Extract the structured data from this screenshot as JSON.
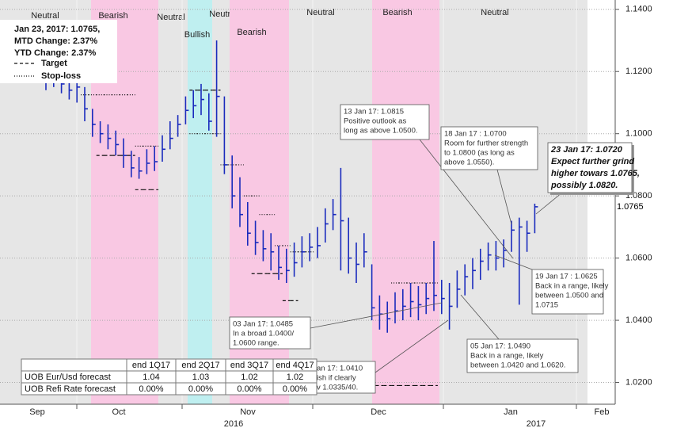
{
  "chart_data": {
    "type": "ohlc",
    "color": "#1a2bbd",
    "ylim": [
      1.013,
      1.143
    ],
    "yticks": [
      {
        "value": 1.02,
        "label": "1.0200"
      },
      {
        "value": 1.04,
        "label": "1.0400"
      },
      {
        "value": 1.06,
        "label": "1.0600"
      },
      {
        "value": 1.08,
        "label": "1.0800"
      },
      {
        "value": 1.1,
        "label": "1.1000"
      },
      {
        "value": 1.12,
        "label": "1.1200"
      },
      {
        "value": 1.14,
        "label": "1.1400"
      }
    ],
    "grid": true,
    "month_labels": [
      "Sep",
      "Oct",
      "Nov",
      "Dec",
      "Jan",
      "Feb"
    ],
    "year_labels": [
      "2016",
      "2017"
    ],
    "categories": [
      null,
      null,
      null,
      null,
      null,
      null,
      null,
      null,
      null,
      null,
      null,
      null,
      null,
      null,
      null,
      null,
      null,
      null,
      null,
      null,
      null,
      null,
      null,
      null,
      null,
      null,
      null,
      null,
      null,
      null,
      null,
      null,
      null,
      null,
      null,
      null,
      null,
      null,
      null,
      null,
      null,
      null,
      null,
      null,
      null,
      null,
      null,
      null,
      null,
      null,
      null,
      null,
      null,
      null,
      null,
      null,
      null,
      null,
      null,
      null,
      null,
      null,
      null,
      null
    ],
    "series": {
      "high": [
        1.1205,
        1.121,
        1.1195,
        1.118,
        1.1185,
        1.115,
        1.108,
        1.104,
        1.103,
        1.101,
        1.0985,
        1.0945,
        1.0925,
        1.095,
        1.096,
        1.0995,
        1.104,
        1.106,
        1.112,
        1.114,
        1.116,
        1.113,
        1.13,
        1.112,
        1.093,
        1.086,
        1.078,
        1.072,
        1.069,
        1.068,
        1.064,
        1.063,
        1.065,
        1.067,
        1.068,
        1.07,
        1.076,
        1.079,
        1.089,
        1.073,
        1.065,
        1.068,
        1.058,
        1.048,
        1.046,
        1.049,
        1.05,
        1.052,
        1.051,
        1.052,
        1.0655,
        1.053,
        1.052,
        1.056,
        1.058,
        1.06,
        1.063,
        1.065,
        1.0655,
        1.066,
        1.072,
        1.073,
        1.072,
        1.0775
      ],
      "low": [
        1.114,
        1.115,
        1.113,
        1.111,
        1.11,
        1.104,
        1.099,
        1.097,
        1.095,
        1.093,
        1.089,
        1.086,
        1.0855,
        1.087,
        1.088,
        1.091,
        1.095,
        1.099,
        1.103,
        1.105,
        1.106,
        1.101,
        1.099,
        1.087,
        1.076,
        1.07,
        1.064,
        1.061,
        1.059,
        1.056,
        1.053,
        1.052,
        1.054,
        1.057,
        1.059,
        1.06,
        1.065,
        1.069,
        1.056,
        1.055,
        1.052,
        1.057,
        1.04,
        1.037,
        1.036,
        1.039,
        1.04,
        1.041,
        1.04,
        1.042,
        1.043,
        1.042,
        1.037,
        1.044,
        1.048,
        1.05,
        1.053,
        1.056,
        1.056,
        1.057,
        1.062,
        1.045,
        1.062,
        1.068
      ],
      "close": [
        1.117,
        1.1185,
        1.116,
        1.114,
        1.115,
        1.108,
        1.103,
        1.1,
        1.0985,
        1.0965,
        1.093,
        1.089,
        1.088,
        1.0905,
        1.091,
        1.095,
        1.0985,
        1.103,
        1.1075,
        1.109,
        1.111,
        1.104,
        1.112,
        1.09,
        1.08,
        1.074,
        1.068,
        1.065,
        1.063,
        1.062,
        1.057,
        1.056,
        1.0585,
        1.062,
        1.0635,
        1.064,
        1.071,
        1.074,
        1.072,
        1.06,
        1.058,
        1.062,
        1.044,
        1.042,
        1.0405,
        1.043,
        1.0445,
        1.046,
        1.045,
        1.047,
        1.048,
        1.047,
        1.0445,
        1.05,
        1.054,
        1.056,
        1.059,
        1.061,
        1.06,
        1.0625,
        1.069,
        1.07,
        1.068,
        1.0765
      ]
    },
    "levels": [
      {
        "name": "Target",
        "style": "dashed",
        "color": "#111111",
        "values": [
          null,
          null,
          null,
          null,
          null,
          null,
          null,
          1.093,
          1.093,
          1.093,
          1.093,
          1.093,
          1.082,
          1.082,
          1.082,
          null,
          null,
          null,
          null,
          1.114,
          1.114,
          1.114,
          1.114,
          null,
          null,
          null,
          null,
          1.055,
          1.055,
          1.055,
          1.055,
          1.0463,
          1.0463,
          null,
          null,
          null,
          null,
          null,
          null,
          null,
          null,
          null,
          null,
          1.019,
          1.019,
          1.019,
          1.019,
          1.019,
          1.019,
          1.019,
          1.019,
          null,
          null,
          null,
          null,
          null,
          null,
          null,
          null,
          null,
          null,
          null,
          null,
          null
        ]
      },
      {
        "name": "Stop-loss",
        "style": "dotted",
        "color": "#111111",
        "values": [
          null,
          null,
          null,
          null,
          null,
          1.1125,
          1.1125,
          1.1125,
          1.1125,
          1.1125,
          1.1125,
          1.1125,
          1.096,
          1.096,
          1.096,
          null,
          null,
          null,
          null,
          1.1,
          1.1,
          1.1,
          1.1,
          1.09,
          1.09,
          1.09,
          1.08,
          1.08,
          1.074,
          1.074,
          1.064,
          1.064,
          1.062,
          1.062,
          1.062,
          null,
          null,
          null,
          null,
          null,
          null,
          null,
          null,
          null,
          null,
          1.052,
          1.052,
          1.052,
          1.052,
          1.052,
          1.052,
          null,
          null,
          null,
          null,
          null,
          null,
          null,
          null,
          null,
          null,
          null,
          null,
          null
        ]
      }
    ],
    "regions": [
      {
        "label": "Neutral",
        "color": "#e6e6e6"
      },
      {
        "label": "Bearish",
        "color": "#f9c8e3"
      },
      {
        "label": "Neutral",
        "color": "#e6e6e6"
      },
      {
        "label": "Bullish",
        "color": "#bfeff0"
      },
      {
        "label": "Neutral",
        "color": "#e6e6e6"
      },
      {
        "label": "Bearish",
        "color": "#f9c8e3"
      },
      {
        "label": "Neutral",
        "color": "#e6e6e6"
      },
      {
        "label": "Bearish",
        "color": "#f9c8e3"
      },
      {
        "label": "Neutral",
        "color": "#e6e6e6"
      }
    ],
    "legend": {
      "lines": [
        "Jan 23, 2017:  1.0765,",
        "MTD Change: 2.37%",
        "YTD Change:  2.37%"
      ]
    },
    "annotations": [
      {
        "lines": [
          "13 Jan 17: 1.0815",
          "Positive outlook as",
          "long as above 1.0500."
        ]
      },
      {
        "lines": [
          "18 Jan 17 : 1.0700",
          "Room for further strength",
          "to 1.0800 (as long as",
          "above 1.0550)."
        ]
      },
      {
        "lines": [
          "23 Jan 17: 1.0720",
          "Expect further grind",
          "higher towars 1.0765,",
          "possibly 1.0820."
        ]
      },
      {
        "lines": [
          "19 Jan 17 : 1.0625",
          "Back in a range, likely",
          "between 1.0500 and",
          "1.0715"
        ]
      },
      {
        "lines": [
          "03 Jan 17: 1.0485",
          "In a broad 1.0400/",
          "1.0600 range."
        ]
      },
      {
        "lines": [
          "05 Jan 17: 1.0490",
          "Back in a range, likely",
          "between 1.0420 and 1.0620."
        ]
      },
      {
        "lines": [
          "an 17: 1.0410",
          "ish if clearly",
          "v 1.0335/40."
        ]
      }
    ],
    "forecast_table": {
      "header": [
        "end 1Q17",
        "end 2Q17",
        "end 3Q17",
        "end 4Q17"
      ],
      "rows": [
        [
          "UOB Eur/Usd forecast",
          "1.04",
          "1.03",
          "1.02",
          "1.02"
        ],
        [
          "UOB Refi Rate forecast",
          "0.00%",
          "0.00%",
          "0.00%",
          "0.00%"
        ]
      ]
    }
  }
}
